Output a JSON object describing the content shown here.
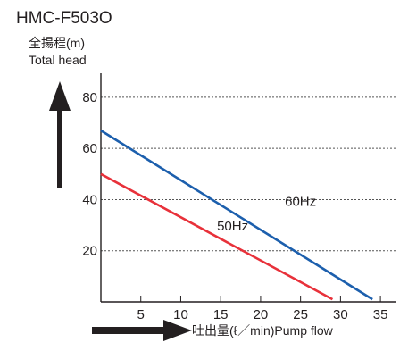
{
  "title": "HMC-F503O",
  "chart_data": {
    "type": "line",
    "ylabel_jp": "全揚程(m)",
    "ylabel_en": "Total head",
    "xlabel": "吐出量(ℓ／min)Pump flow",
    "x_ticks": [
      5,
      10,
      15,
      20,
      25,
      30,
      35
    ],
    "y_ticks": [
      20,
      40,
      60,
      80
    ],
    "xlim": [
      0,
      37
    ],
    "ylim": [
      0,
      88
    ],
    "grid": "horizontal-dashed",
    "series": [
      {
        "name": "60Hz",
        "color": "#1c5fad",
        "x": [
          0,
          34
        ],
        "y": [
          67,
          1
        ]
      },
      {
        "name": "50Hz",
        "color": "#e8313a",
        "x": [
          0,
          29
        ],
        "y": [
          50,
          1
        ]
      }
    ]
  }
}
